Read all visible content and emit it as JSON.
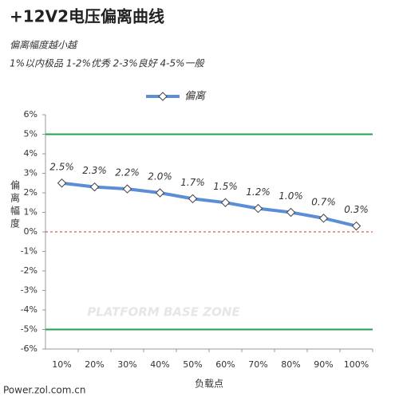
{
  "chart_data": {
    "type": "line",
    "title": "+12V2电压偏离曲线",
    "subtitle": [
      "偏离幅度越小越",
      "1%以内极品 1-2%优秀 2-3%良好 4-5%一般"
    ],
    "y_label": "偏离幅度",
    "x_label": "负载点",
    "source": "Power.zol.com.cn",
    "watermark": "PLATFORM BASE ZONE",
    "categories": [
      "10%",
      "20%",
      "30%",
      "40%",
      "50%",
      "60%",
      "70%",
      "80%",
      "90%",
      "100%"
    ],
    "series": [
      {
        "name": "偏离",
        "color": "#5b8ed6",
        "values": [
          2.5,
          2.3,
          2.2,
          2.0,
          1.7,
          1.5,
          1.2,
          1.0,
          0.7,
          0.3
        ],
        "value_labels": [
          "2.5%",
          "2.3%",
          "2.2%",
          "2.0%",
          "1.7%",
          "1.5%",
          "1.2%",
          "1.0%",
          "0.7%",
          "0.3%"
        ]
      }
    ],
    "ylim": [
      -6,
      6
    ],
    "yticks": [
      {
        "value": -6,
        "label": "-6%"
      },
      {
        "value": -5,
        "label": "-5%"
      },
      {
        "value": -4,
        "label": "-4%"
      },
      {
        "value": -3,
        "label": "-3%"
      },
      {
        "value": -2,
        "label": "-2%"
      },
      {
        "value": -1,
        "label": "-1%"
      },
      {
        "value": 0,
        "label": "0%"
      },
      {
        "value": 1,
        "label": "1%"
      },
      {
        "value": 2,
        "label": "2%"
      },
      {
        "value": 3,
        "label": "3%"
      },
      {
        "value": 4,
        "label": "4%"
      },
      {
        "value": 5,
        "label": "5%"
      },
      {
        "value": 6,
        "label": "6%"
      }
    ],
    "reference_lines": [
      {
        "value": 5,
        "color": "#1fa055",
        "style": "solid"
      },
      {
        "value": -5,
        "color": "#1fa055",
        "style": "solid"
      },
      {
        "value": 0,
        "color": "#c0392b",
        "style": "dashed"
      }
    ],
    "legend": "top"
  }
}
